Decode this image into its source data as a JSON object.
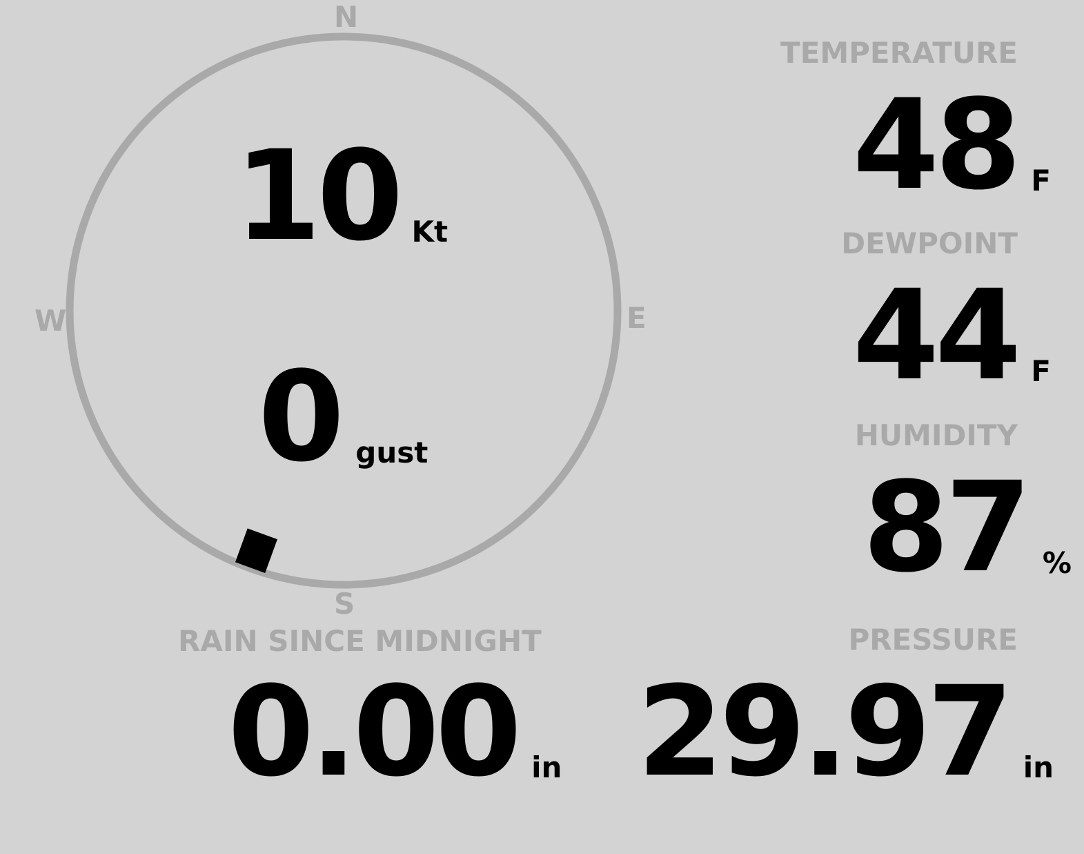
{
  "compass": {
    "north": "N",
    "south": "S",
    "east": "E",
    "west": "W",
    "wind_direction_deg": 200,
    "ring_color": "#a9a9a9"
  },
  "wind": {
    "speed": "10",
    "speed_unit": "Kt",
    "gust": "0",
    "gust_unit": "gust"
  },
  "temperature": {
    "label": "TEMPERATURE",
    "value": "48",
    "unit": "F"
  },
  "dewpoint": {
    "label": "DEWPOINT",
    "value": "44",
    "unit": "F"
  },
  "humidity": {
    "label": "HUMIDITY",
    "value": "87",
    "unit": "%"
  },
  "pressure": {
    "label": "PRESSURE",
    "value": "29.97",
    "unit": "in"
  },
  "rain": {
    "label": "RAIN SINCE MIDNIGHT",
    "value": "0.00",
    "unit": "in"
  }
}
